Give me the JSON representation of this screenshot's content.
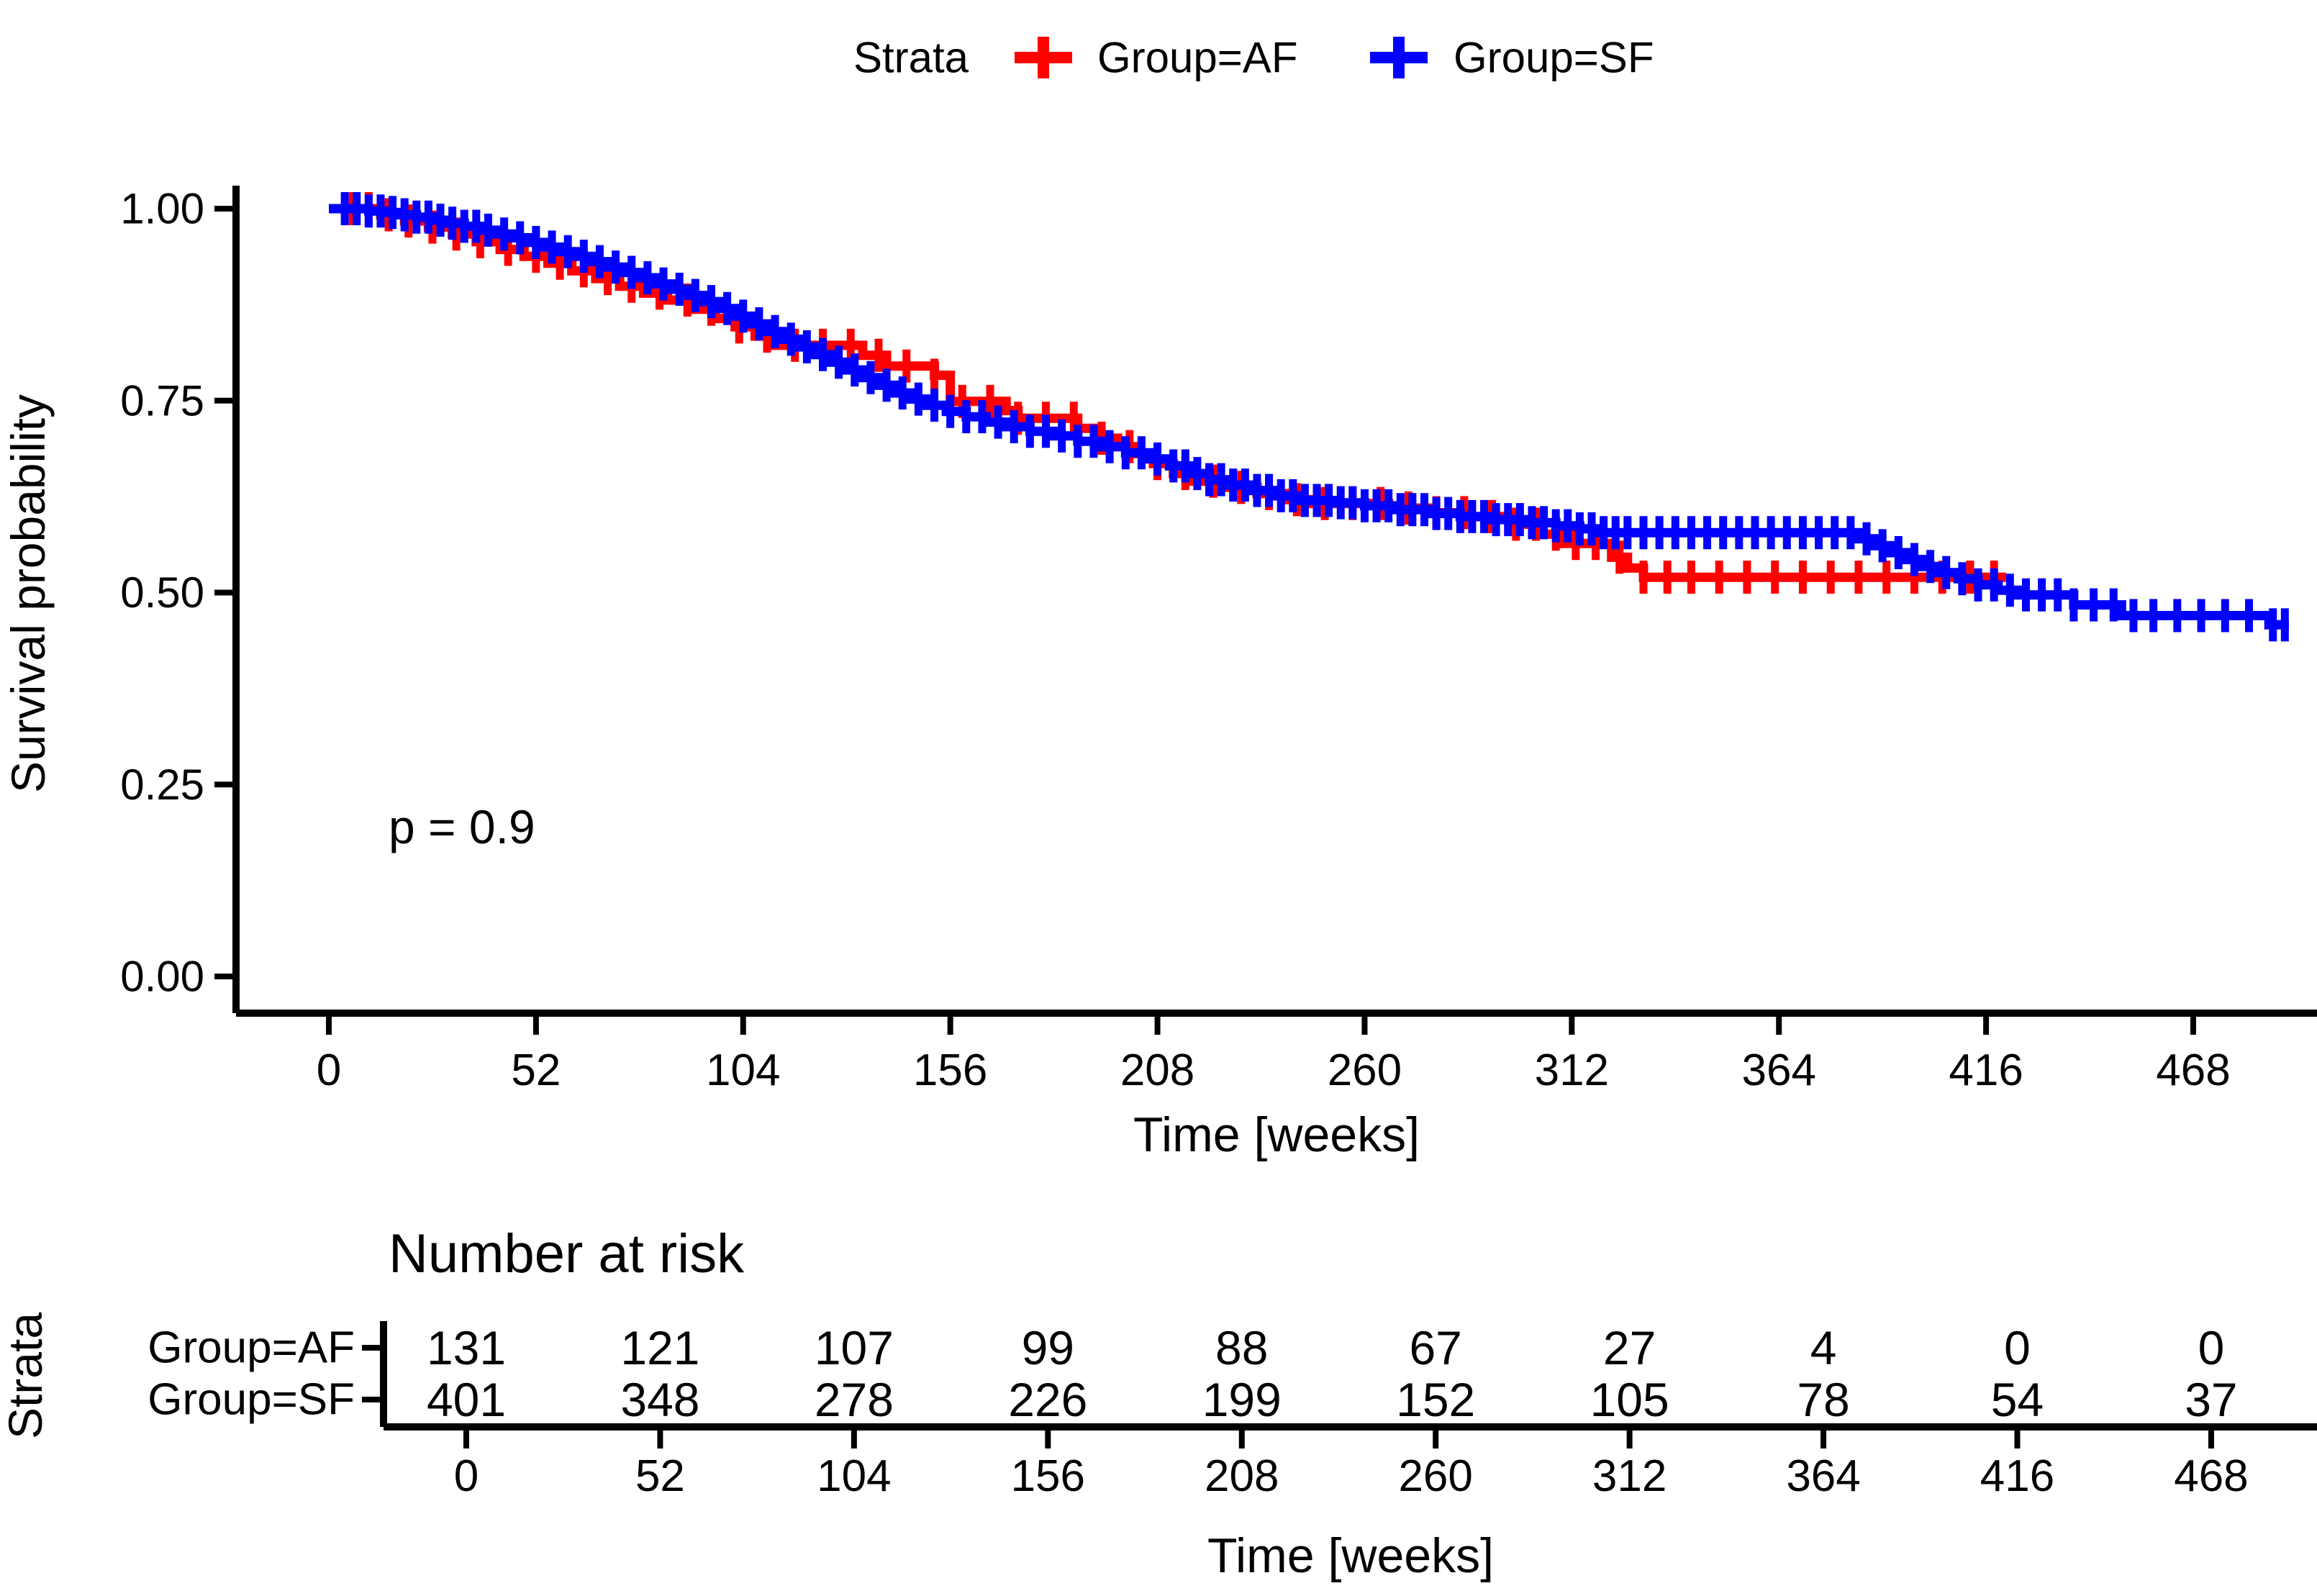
{
  "legend": {
    "title": "Strata",
    "items": [
      {
        "label": "Group=AF",
        "color": "#ff0000"
      },
      {
        "label": "Group=SF",
        "color": "#0000ff"
      }
    ]
  },
  "plot": {
    "ylabel": "Survival probability",
    "xlabel": "Time [weeks]",
    "ytick_labels": [
      "1.00",
      "0.75",
      "0.50",
      "0.25",
      "0.00"
    ],
    "ytick_values": [
      1.0,
      0.75,
      0.5,
      0.25,
      0.0
    ],
    "xtick_values": [
      0,
      52,
      104,
      156,
      208,
      260,
      312,
      364,
      416,
      468
    ],
    "annotation": "p = 0.9"
  },
  "chart_data": {
    "type": "line",
    "subtype": "kaplan-meier-step",
    "title": "",
    "xlabel": "Time [weeks]",
    "ylabel": "Survival probability",
    "xlim": [
      0,
      497
    ],
    "ylim": [
      0.0,
      1.0
    ],
    "grid": false,
    "legend_position": "top",
    "annotation": {
      "text": "p = 0.9",
      "x_weeks": 16,
      "y_surv": 0.2
    },
    "series": [
      {
        "name": "Group=AF",
        "color": "#ff0000",
        "end_week": 421,
        "steps": [
          [
            0,
            1.0
          ],
          [
            13,
            0.992
          ],
          [
            19,
            0.984
          ],
          [
            25,
            0.976
          ],
          [
            31,
            0.967
          ],
          [
            37,
            0.957
          ],
          [
            43,
            0.947
          ],
          [
            49,
            0.938
          ],
          [
            55,
            0.929
          ],
          [
            61,
            0.919
          ],
          [
            67,
            0.909
          ],
          [
            73,
            0.899
          ],
          [
            79,
            0.89
          ],
          [
            85,
            0.881
          ],
          [
            91,
            0.869
          ],
          [
            97,
            0.857
          ],
          [
            102,
            0.846
          ],
          [
            107,
            0.834
          ],
          [
            111,
            0.822
          ],
          [
            134,
            0.809
          ],
          [
            140,
            0.795
          ],
          [
            152,
            0.783
          ],
          [
            156,
            0.749
          ],
          [
            170,
            0.737
          ],
          [
            173,
            0.727
          ],
          [
            188,
            0.714
          ],
          [
            193,
            0.701
          ],
          [
            198,
            0.69
          ],
          [
            202,
            0.681
          ],
          [
            207,
            0.668
          ],
          [
            212,
            0.655
          ],
          [
            217,
            0.645
          ],
          [
            226,
            0.637
          ],
          [
            233,
            0.629
          ],
          [
            240,
            0.621
          ],
          [
            247,
            0.616
          ],
          [
            266,
            0.61
          ],
          [
            276,
            0.604
          ],
          [
            286,
            0.599
          ],
          [
            298,
            0.589
          ],
          [
            304,
            0.576
          ],
          [
            310,
            0.564
          ],
          [
            322,
            0.546
          ],
          [
            326,
            0.532
          ],
          [
            330,
            0.52
          ]
        ],
        "censor_weeks": [
          6,
          10,
          15,
          20,
          26,
          32,
          38,
          45,
          52,
          58,
          64,
          70,
          76,
          83,
          90,
          96,
          103,
          110,
          117,
          124,
          131,
          138,
          145,
          152,
          159,
          166,
          173,
          180,
          187,
          194,
          201,
          208,
          215,
          222,
          229,
          236,
          243,
          250,
          257,
          264,
          271,
          278,
          285,
          292,
          298,
          303,
          308,
          313,
          318,
          324,
          330,
          336,
          342,
          349,
          356,
          363,
          370,
          377,
          384,
          391,
          398,
          405,
          412,
          418
        ]
      },
      {
        "name": "Group=SF",
        "color": "#0000ff",
        "end_week": 492,
        "steps": [
          [
            0,
            1.0
          ],
          [
            10,
            0.997
          ],
          [
            14,
            0.995
          ],
          [
            18,
            0.992
          ],
          [
            22,
            0.989
          ],
          [
            26,
            0.985
          ],
          [
            30,
            0.981
          ],
          [
            34,
            0.977
          ],
          [
            38,
            0.972
          ],
          [
            42,
            0.967
          ],
          [
            46,
            0.962
          ],
          [
            50,
            0.956
          ],
          [
            54,
            0.95
          ],
          [
            58,
            0.944
          ],
          [
            62,
            0.938
          ],
          [
            66,
            0.931
          ],
          [
            70,
            0.924
          ],
          [
            74,
            0.917
          ],
          [
            78,
            0.91
          ],
          [
            82,
            0.902
          ],
          [
            86,
            0.895
          ],
          [
            90,
            0.887
          ],
          [
            94,
            0.879
          ],
          [
            98,
            0.87
          ],
          [
            102,
            0.86
          ],
          [
            106,
            0.85
          ],
          [
            110,
            0.84
          ],
          [
            114,
            0.83
          ],
          [
            118,
            0.82
          ],
          [
            122,
            0.81
          ],
          [
            126,
            0.8
          ],
          [
            130,
            0.79
          ],
          [
            134,
            0.78
          ],
          [
            138,
            0.77
          ],
          [
            142,
            0.76
          ],
          [
            146,
            0.752
          ],
          [
            150,
            0.744
          ],
          [
            155,
            0.736
          ],
          [
            160,
            0.729
          ],
          [
            165,
            0.722
          ],
          [
            170,
            0.716
          ],
          [
            176,
            0.71
          ],
          [
            182,
            0.704
          ],
          [
            188,
            0.697
          ],
          [
            194,
            0.69
          ],
          [
            200,
            0.682
          ],
          [
            206,
            0.674
          ],
          [
            211,
            0.665
          ],
          [
            216,
            0.655
          ],
          [
            221,
            0.647
          ],
          [
            226,
            0.64
          ],
          [
            232,
            0.633
          ],
          [
            238,
            0.626
          ],
          [
            244,
            0.62
          ],
          [
            252,
            0.617
          ],
          [
            260,
            0.613
          ],
          [
            268,
            0.608
          ],
          [
            276,
            0.603
          ],
          [
            284,
            0.599
          ],
          [
            292,
            0.595
          ],
          [
            300,
            0.591
          ],
          [
            308,
            0.587
          ],
          [
            314,
            0.583
          ],
          [
            318,
            0.578
          ],
          [
            384,
            0.57
          ],
          [
            388,
            0.561
          ],
          [
            392,
            0.552
          ],
          [
            396,
            0.543
          ],
          [
            400,
            0.534
          ],
          [
            404,
            0.526
          ],
          [
            409,
            0.518
          ],
          [
            414,
            0.51
          ],
          [
            419,
            0.503
          ],
          [
            424,
            0.497
          ],
          [
            438,
            0.484
          ],
          [
            450,
            0.47
          ],
          [
            487,
            0.458
          ]
        ],
        "censor_weeks": [
          4,
          7,
          10,
          13,
          16,
          19,
          22,
          25,
          28,
          31,
          34,
          37,
          40,
          44,
          48,
          52,
          56,
          60,
          64,
          68,
          72,
          76,
          80,
          84,
          88,
          92,
          96,
          100,
          104,
          108,
          112,
          116,
          120,
          124,
          128,
          132,
          136,
          140,
          144,
          148,
          152,
          156,
          160,
          164,
          168,
          172,
          176,
          180,
          184,
          188,
          192,
          196,
          200,
          204,
          208,
          212,
          215,
          218,
          221,
          224,
          227,
          230,
          233,
          236,
          239,
          242,
          245,
          248,
          251,
          254,
          257,
          260,
          263,
          266,
          269,
          272,
          275,
          278,
          281,
          284,
          287,
          290,
          293,
          296,
          299,
          302,
          305,
          308,
          311,
          314,
          317,
          320,
          323,
          326,
          330,
          334,
          338,
          342,
          346,
          350,
          354,
          358,
          362,
          366,
          370,
          374,
          378,
          382,
          386,
          390,
          394,
          398,
          402,
          406,
          410,
          414,
          418,
          422,
          426,
          430,
          434,
          438,
          443,
          448,
          453,
          458,
          464,
          470,
          476,
          482,
          488,
          491
        ]
      }
    ]
  },
  "risk_table": {
    "title": "Number at risk",
    "axis_label": "Strata",
    "xlabel": "Time [weeks]",
    "xtick_values": [
      0,
      52,
      104,
      156,
      208,
      260,
      312,
      364,
      416,
      468
    ],
    "rows": [
      {
        "label": "Group=AF",
        "color": "#ff0000",
        "values": [
          "131",
          "121",
          "107",
          "99",
          "88",
          "67",
          "27",
          "4",
          "0",
          "0"
        ]
      },
      {
        "label": "Group=SF",
        "color": "#0000ff",
        "values": [
          "401",
          "348",
          "278",
          "226",
          "199",
          "152",
          "105",
          "78",
          "54",
          "37"
        ]
      }
    ]
  },
  "colors": {
    "axis": "#000000",
    "text": "#000000",
    "background": "#ffffff"
  }
}
